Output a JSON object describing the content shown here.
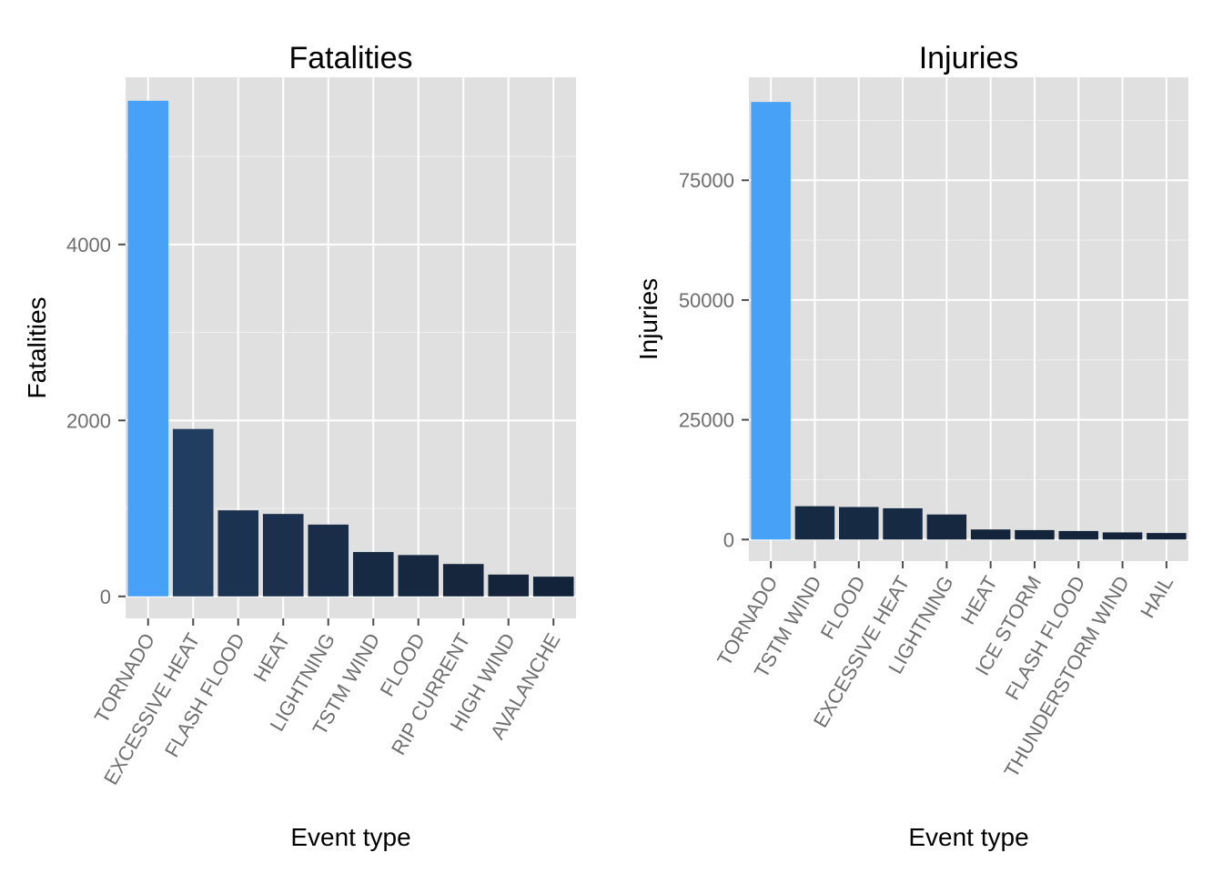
{
  "chart_data": [
    {
      "type": "bar",
      "title": "Fatalities",
      "xlabel": "Event type",
      "ylabel": "Fatalities",
      "categories": [
        "TORNADO",
        "EXCESSIVE HEAT",
        "FLASH FLOOD",
        "HEAT",
        "LIGHTNING",
        "TSTM WIND",
        "FLOOD",
        "RIP CURRENT",
        "HIGH WIND",
        "AVALANCHE"
      ],
      "values": [
        5633,
        1903,
        978,
        937,
        816,
        504,
        470,
        368,
        248,
        224
      ],
      "ylim": [
        -250,
        5900
      ],
      "yticks": [
        0,
        2000,
        4000
      ],
      "ytick_labels": [
        "0",
        "2000",
        "4000"
      ],
      "colors": [
        "#47a1f7",
        "#213e61",
        "#1b3250",
        "#1a304d",
        "#192d48",
        "#172a43",
        "#162840",
        "#15263d",
        "#14243a",
        "#13233a"
      ],
      "grid": true,
      "legend": "none"
    },
    {
      "type": "bar",
      "title": "Injuries",
      "xlabel": "Event type",
      "ylabel": "Injuries",
      "categories": [
        "TORNADO",
        "TSTM WIND",
        "FLOOD",
        "EXCESSIVE HEAT",
        "LIGHTNING",
        "HEAT",
        "ICE STORM",
        "FLASH FLOOD",
        "THUNDERSTORM WIND",
        "HAIL"
      ],
      "values": [
        91346,
        6957,
        6789,
        6525,
        5230,
        2100,
        1975,
        1777,
        1488,
        1361
      ],
      "ylim": [
        -4500,
        96500
      ],
      "yticks": [
        0,
        25000,
        50000,
        75000
      ],
      "ytick_labels": [
        "0",
        "25000",
        "50000",
        "75000"
      ],
      "colors": [
        "#47a1f7",
        "#172a43",
        "#172a43",
        "#172a43",
        "#162840",
        "#14243a",
        "#14243a",
        "#14243a",
        "#13233a",
        "#13233a"
      ],
      "grid": true,
      "legend": "none"
    }
  ]
}
